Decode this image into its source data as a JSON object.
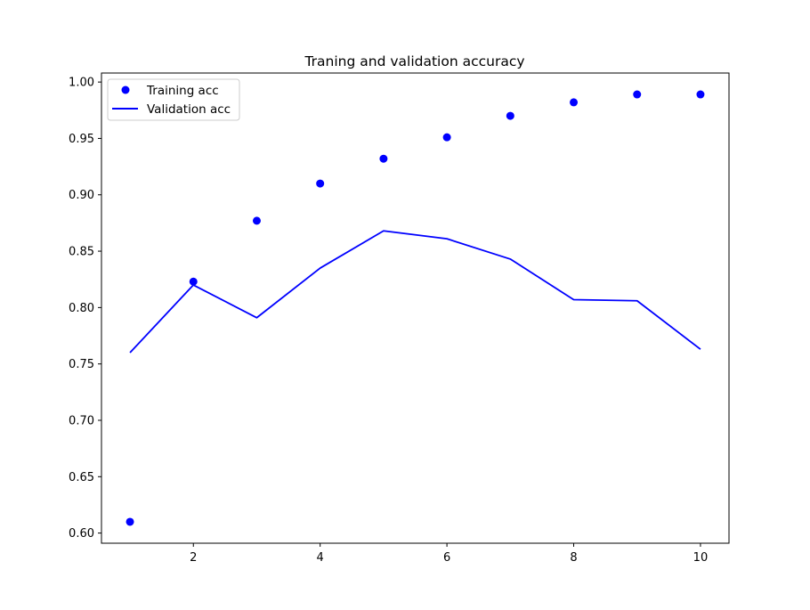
{
  "chart_data": {
    "type": "line",
    "title": "Traning and validation accuracy",
    "xlabel": "",
    "ylabel": "",
    "x": [
      1,
      2,
      3,
      4,
      5,
      6,
      7,
      8,
      9,
      10
    ],
    "xlim": [
      0.55,
      10.45
    ],
    "ylim": [
      0.591,
      1.008
    ],
    "xticks": [
      2,
      4,
      6,
      8,
      10
    ],
    "yticks": [
      0.6,
      0.65,
      0.7,
      0.75,
      0.8,
      0.85,
      0.9,
      0.95,
      1.0
    ],
    "xtick_labels": [
      "2",
      "4",
      "6",
      "8",
      "10"
    ],
    "ytick_labels": [
      "0.60",
      "0.65",
      "0.70",
      "0.75",
      "0.80",
      "0.85",
      "0.90",
      "0.95",
      "1.00"
    ],
    "grid": false,
    "legend_position": "top-left",
    "series": [
      {
        "name": "Training acc",
        "style": "markers",
        "color": "#0000ff",
        "values": [
          0.61,
          0.823,
          0.877,
          0.91,
          0.932,
          0.951,
          0.97,
          0.982,
          0.989,
          0.989
        ]
      },
      {
        "name": "Validation acc",
        "style": "line",
        "color": "#0000ff",
        "values": [
          0.76,
          0.82,
          0.791,
          0.835,
          0.868,
          0.861,
          0.843,
          0.807,
          0.806,
          0.763
        ]
      }
    ]
  }
}
